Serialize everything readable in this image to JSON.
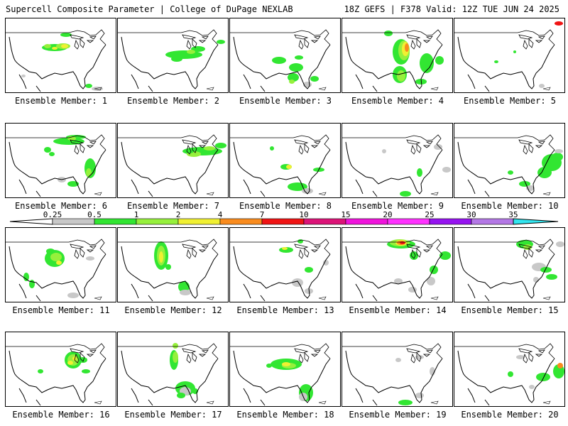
{
  "header": {
    "title": "Supercell Composite Parameter | College of DuPage NEXLAB",
    "run_info": "18Z GEFS | F378 Valid: 12Z TUE JUN 24 2025"
  },
  "members": [
    {
      "label": "Ensemble Member: 1"
    },
    {
      "label": "Ensemble Member: 2"
    },
    {
      "label": "Ensemble Member: 3"
    },
    {
      "label": "Ensemble Member: 4"
    },
    {
      "label": "Ensemble Member: 5"
    },
    {
      "label": "Ensemble Member: 6"
    },
    {
      "label": "Ensemble Member: 7"
    },
    {
      "label": "Ensemble Member: 8"
    },
    {
      "label": "Ensemble Member: 9"
    },
    {
      "label": "Ensemble Member: 10"
    },
    {
      "label": "Ensemble Member: 11"
    },
    {
      "label": "Ensemble Member: 12"
    },
    {
      "label": "Ensemble Member: 13"
    },
    {
      "label": "Ensemble Member: 14"
    },
    {
      "label": "Ensemble Member: 15"
    },
    {
      "label": "Ensemble Member: 16"
    },
    {
      "label": "Ensemble Member: 17"
    },
    {
      "label": "Ensemble Member: 18"
    },
    {
      "label": "Ensemble Member: 19"
    },
    {
      "label": "Ensemble Member: 20"
    }
  ],
  "colorbar": {
    "ticks": [
      "0.25",
      "0.5",
      "1",
      "2",
      "4",
      "7",
      "10",
      "15",
      "20",
      "25",
      "30",
      "35"
    ],
    "colors": [
      "#c8c8c8",
      "#32e632",
      "#96f03c",
      "#f0f032",
      "#fa8c1e",
      "#f01414",
      "#dc1478",
      "#f014dc",
      "#ff32ff",
      "#9614f0",
      "#b478e6",
      "#32e6f0"
    ]
  }
}
